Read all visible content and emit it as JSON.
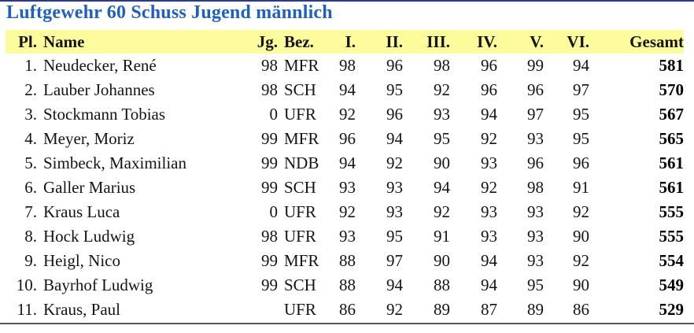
{
  "title": "Luftgewehr 60 Schuss Jugend männlich",
  "colors": {
    "title_blue": "#1d5fc7",
    "header_yellow": "#fcfc9c",
    "top_rule": "#2b3a8e",
    "bottom_rule": "#555555"
  },
  "table": {
    "headers": [
      "Pl.",
      "Name",
      "Jg.",
      "Bez.",
      "I.",
      "II.",
      "III.",
      "IV.",
      "V.",
      "VI.",
      "Gesamt"
    ],
    "rows": [
      {
        "pl": "1.",
        "name": "Neudecker, René",
        "jg": "98",
        "bez": "MFR",
        "s1": "98",
        "s2": "96",
        "s3": "98",
        "s4": "96",
        "s5": "99",
        "s6": "94",
        "gesamt": "581"
      },
      {
        "pl": "2.",
        "name": "Lauber Johannes",
        "jg": "98",
        "bez": "SCH",
        "s1": "94",
        "s2": "95",
        "s3": "92",
        "s4": "96",
        "s5": "96",
        "s6": "97",
        "gesamt": "570"
      },
      {
        "pl": "3.",
        "name": "Stockmann Tobias",
        "jg": "0",
        "bez": "UFR",
        "s1": "92",
        "s2": "96",
        "s3": "93",
        "s4": "94",
        "s5": "97",
        "s6": "95",
        "gesamt": "567"
      },
      {
        "pl": "4.",
        "name": "Meyer, Moriz",
        "jg": "99",
        "bez": "MFR",
        "s1": "96",
        "s2": "94",
        "s3": "95",
        "s4": "92",
        "s5": "93",
        "s6": "95",
        "gesamt": "565"
      },
      {
        "pl": "5.",
        "name": "Simbeck, Maximilian",
        "jg": "99",
        "bez": "NDB",
        "s1": "94",
        "s2": "92",
        "s3": "90",
        "s4": "93",
        "s5": "96",
        "s6": "96",
        "gesamt": "561"
      },
      {
        "pl": "6.",
        "name": "Galler Marius",
        "jg": "99",
        "bez": "SCH",
        "s1": "93",
        "s2": "93",
        "s3": "94",
        "s4": "92",
        "s5": "98",
        "s6": "91",
        "gesamt": "561"
      },
      {
        "pl": "7.",
        "name": "Kraus Luca",
        "jg": "0",
        "bez": "UFR",
        "s1": "92",
        "s2": "93",
        "s3": "92",
        "s4": "93",
        "s5": "93",
        "s6": "92",
        "gesamt": "555"
      },
      {
        "pl": "8.",
        "name": "Hock Ludwig",
        "jg": "98",
        "bez": "UFR",
        "s1": "93",
        "s2": "95",
        "s3": "91",
        "s4": "93",
        "s5": "93",
        "s6": "90",
        "gesamt": "555"
      },
      {
        "pl": "9.",
        "name": "Heigl, Nico",
        "jg": "99",
        "bez": "MFR",
        "s1": "88",
        "s2": "97",
        "s3": "90",
        "s4": "94",
        "s5": "93",
        "s6": "92",
        "gesamt": "554"
      },
      {
        "pl": "10.",
        "name": "Bayrhof Ludwig",
        "jg": "99",
        "bez": "SCH",
        "s1": "88",
        "s2": "94",
        "s3": "88",
        "s4": "94",
        "s5": "95",
        "s6": "90",
        "gesamt": "549"
      },
      {
        "pl": "11.",
        "name": "Kraus, Paul",
        "jg": "",
        "bez": "UFR",
        "s1": "86",
        "s2": "92",
        "s3": "89",
        "s4": "87",
        "s5": "89",
        "s6": "86",
        "gesamt": "529"
      }
    ]
  }
}
